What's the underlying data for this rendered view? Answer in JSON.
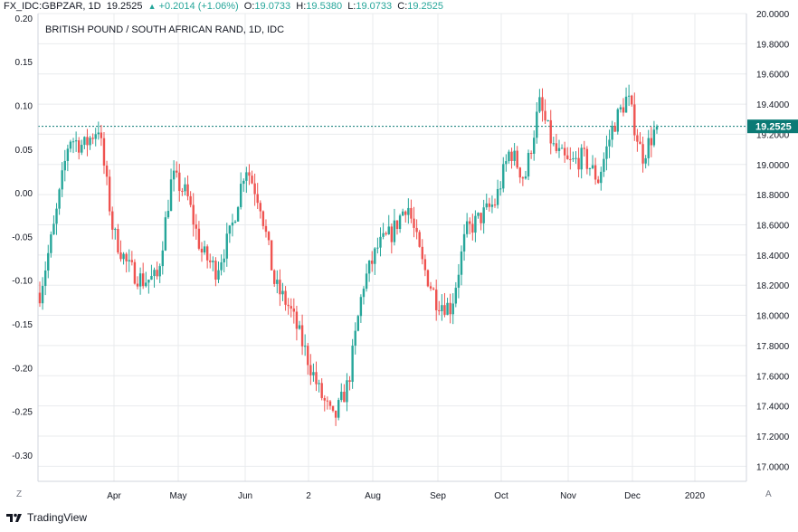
{
  "header": {
    "symbol": "FX_IDC:GBPZAR, 1D",
    "last": "19.2525",
    "change": "+0.2014 (+1.06%)",
    "o_label": "O:",
    "o_value": "19.0733",
    "h_label": "H:",
    "h_value": "19.5380",
    "l_label": "L:",
    "l_value": "19.0733",
    "c_label": "C:",
    "c_value": "19.2525"
  },
  "footer": {
    "brand": "TradingView"
  },
  "colors": {
    "up": "#26a69a",
    "down": "#ef5350",
    "grid": "#e9ebee",
    "ref_line": "#0b7a75",
    "text": "#131722"
  },
  "buttons": {
    "left_scale": "Z",
    "auto_scale": "A"
  },
  "chart_data": {
    "type": "candlestick",
    "title": "BRITISH POUND / SOUTH AFRICAN RAND, 1D, IDC",
    "left_axis": {
      "ylim": [
        -0.33,
        0.205
      ],
      "ticks": [
        "0.20",
        "0.15",
        "0.10",
        "0.05",
        "0.00",
        "-0.05",
        "-0.10",
        "-0.15",
        "-0.20",
        "-0.25",
        "-0.30"
      ]
    },
    "right_axis": {
      "ylim": [
        16.9,
        20.0
      ],
      "ticks": [
        "20.0000",
        "19.8000",
        "19.6000",
        "19.4000",
        "19.2000",
        "19.0000",
        "18.8000",
        "18.6000",
        "18.4000",
        "18.2000",
        "18.0000",
        "17.8000",
        "17.6000",
        "17.4000",
        "17.2000",
        "17.0000"
      ]
    },
    "x_ticks": [
      "Apr",
      "May",
      "Jun",
      "2",
      "Aug",
      "Sep",
      "Oct",
      "Nov",
      "Dec",
      "2020"
    ],
    "last_price_label": "19.2525",
    "grid": true,
    "legend": "none",
    "anchors": [
      [
        "start",
        18.15
      ],
      [
        "Feb-10",
        18.6
      ],
      [
        "Feb-22",
        19.18
      ],
      [
        "Mar-05",
        19.12
      ],
      [
        "Mar-14",
        19.25
      ],
      [
        "Mar-22",
        18.55
      ],
      [
        "Apr-01",
        18.32
      ],
      [
        "Apr-10",
        18.23
      ],
      [
        "Apr-17",
        18.25
      ],
      [
        "Apr-25",
        18.92
      ],
      [
        "May-05",
        18.8
      ],
      [
        "May-12",
        18.42
      ],
      [
        "May-22",
        18.3
      ],
      [
        "May-30",
        18.55
      ],
      [
        "Jun-03",
        19.0
      ],
      [
        "Jun-10",
        18.75
      ],
      [
        "Jun-18",
        18.2
      ],
      [
        "Jun-25",
        18.05
      ],
      [
        "Jul-05",
        17.78
      ],
      [
        "Jul-15",
        17.5
      ],
      [
        "Jul-25",
        17.3
      ],
      [
        "Aug-01",
        17.55
      ],
      [
        "Aug-05",
        18.2
      ],
      [
        "Aug-12",
        18.45
      ],
      [
        "Aug-19",
        18.55
      ],
      [
        "Aug-27",
        18.75
      ],
      [
        "Sep-04",
        18.35
      ],
      [
        "Sep-12",
        18.1
      ],
      [
        "Sep-18",
        18.05
      ],
      [
        "Sep-25",
        18.55
      ],
      [
        "Oct-05",
        18.65
      ],
      [
        "Oct-12",
        18.75
      ],
      [
        "Oct-17",
        19.1
      ],
      [
        "Oct-24",
        18.9
      ],
      [
        "Oct-29",
        19.4
      ],
      [
        "Nov-04",
        19.1
      ],
      [
        "Nov-12",
        19.0
      ],
      [
        "Nov-20",
        19.05
      ],
      [
        "Nov-28",
        18.9
      ],
      [
        "Dec-03",
        19.25
      ],
      [
        "Dec-07",
        19.45
      ],
      [
        "Dec-10",
        19.05
      ],
      [
        "Dec-12",
        19.2525
      ]
    ]
  }
}
